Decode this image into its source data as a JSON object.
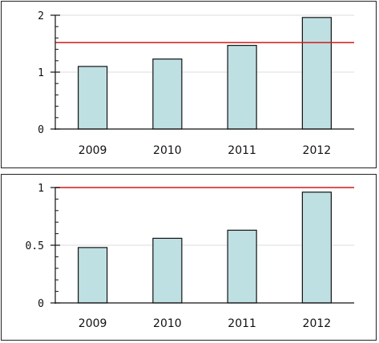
{
  "colors": {
    "bar_fill": "#bfe0e2",
    "bar_stroke": "#111111",
    "threshold": "#d11a1a",
    "grid": "#dcdcdc",
    "axis": "#111111"
  },
  "chart_data": [
    {
      "type": "bar",
      "categories": [
        "2009",
        "2010",
        "2011",
        "2012"
      ],
      "values": [
        1.1,
        1.23,
        1.47,
        1.96
      ],
      "ylim": [
        0,
        2
      ],
      "yticks": [
        0,
        1,
        2
      ],
      "ytick_labels": [
        "0",
        "1",
        "2"
      ],
      "reference_line": 1.52,
      "grid": true,
      "title": "",
      "xlabel": "",
      "ylabel": ""
    },
    {
      "type": "bar",
      "categories": [
        "2009",
        "2010",
        "2011",
        "2012"
      ],
      "values": [
        0.48,
        0.56,
        0.63,
        0.96
      ],
      "ylim": [
        0,
        1
      ],
      "yticks": [
        0,
        0.5,
        1
      ],
      "ytick_labels": [
        "0",
        "0.5",
        "1"
      ],
      "reference_line": 1,
      "grid": true,
      "title": "",
      "xlabel": "",
      "ylabel": ""
    }
  ]
}
